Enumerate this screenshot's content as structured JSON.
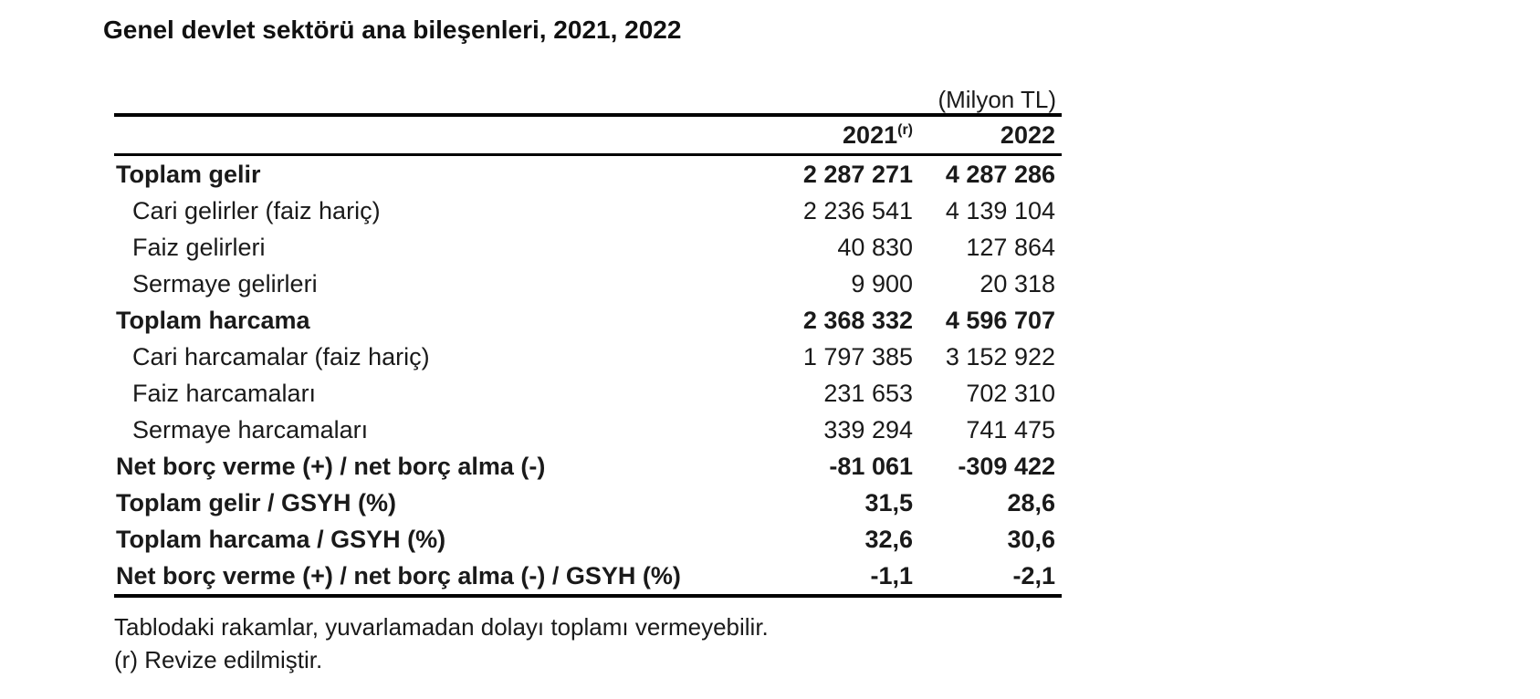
{
  "title": "Genel devlet sektörü ana bileşenleri, 2021, 2022",
  "table": {
    "unit_label": "(Milyon TL)",
    "columns": {
      "year_2021": "2021",
      "year_2021_sup": "(r)",
      "year_2022": "2022"
    },
    "rows": [
      {
        "label": "Toplam gelir",
        "v2021": "2 287 271",
        "v2022": "4 287 286",
        "bold": true,
        "indent": false
      },
      {
        "label": "Cari gelirler (faiz hariç)",
        "v2021": "2 236 541",
        "v2022": "4 139 104",
        "bold": false,
        "indent": true
      },
      {
        "label": "Faiz gelirleri",
        "v2021": "40 830",
        "v2022": "127 864",
        "bold": false,
        "indent": true
      },
      {
        "label": "Sermaye gelirleri",
        "v2021": "9 900",
        "v2022": "20 318",
        "bold": false,
        "indent": true
      },
      {
        "label": "Toplam harcama",
        "v2021": "2 368 332",
        "v2022": "4 596 707",
        "bold": true,
        "indent": false
      },
      {
        "label": "Cari harcamalar (faiz hariç)",
        "v2021": "1 797 385",
        "v2022": "3 152 922",
        "bold": false,
        "indent": true
      },
      {
        "label": "Faiz harcamaları",
        "v2021": "231 653",
        "v2022": "702 310",
        "bold": false,
        "indent": true
      },
      {
        "label": "Sermaye harcamaları",
        "v2021": "339 294",
        "v2022": "741 475",
        "bold": false,
        "indent": true
      },
      {
        "label": "Net borç verme (+) / net borç alma (-)",
        "v2021": "-81 061",
        "v2022": "-309 422",
        "bold": true,
        "indent": false
      },
      {
        "label": "Toplam gelir / GSYH (%)",
        "v2021": "31,5",
        "v2022": "28,6",
        "bold": true,
        "indent": false
      },
      {
        "label": "Toplam harcama / GSYH (%)",
        "v2021": "32,6",
        "v2022": "30,6",
        "bold": true,
        "indent": false
      },
      {
        "label": "Net borç verme (+) / net borç alma (-) / GSYH (%)",
        "v2021": "-1,1",
        "v2022": "-2,1",
        "bold": true,
        "indent": false
      }
    ]
  },
  "footnotes": {
    "rounding": "Tablodaki rakamlar, yuvarlamadan dolayı toplamı vermeyebilir.",
    "revision": "(r) Revize edilmiştir."
  }
}
